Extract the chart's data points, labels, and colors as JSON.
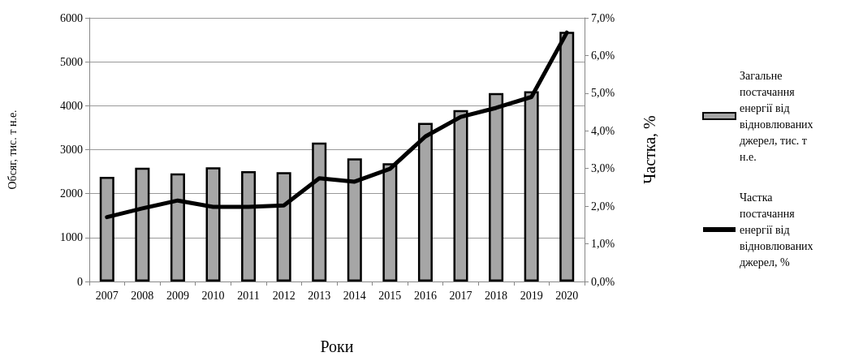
{
  "chart_data": {
    "type": "bar",
    "xlabel": "Роки",
    "ylabel": "Обсяг, тис. т н.е.",
    "y2label": "Частка, %",
    "categories": [
      "2007",
      "2008",
      "2009",
      "2010",
      "2011",
      "2012",
      "2013",
      "2014",
      "2015",
      "2016",
      "2017",
      "2018",
      "2019",
      "2020"
    ],
    "series": [
      {
        "name": "Загальне постачання енергії від відновлюваних джерел, тис. т н.е.",
        "color": "#a6a6a6",
        "values": [
          2380,
          2590,
          2460,
          2600,
          2510,
          2490,
          3160,
          2800,
          2690,
          3610,
          3900,
          4290,
          4330,
          5680
        ]
      },
      {
        "name": "Частка постачання енергії від відновлюваних джерел, %",
        "type": "line",
        "axis": "y2",
        "color": "#000000",
        "values": [
          1.71,
          1.94,
          2.15,
          1.98,
          1.98,
          2.02,
          2.74,
          2.65,
          2.99,
          3.85,
          4.37,
          4.61,
          4.9,
          6.61
        ]
      }
    ],
    "ylim": [
      0,
      6000
    ],
    "yticks": [
      0,
      1000,
      2000,
      3000,
      4000,
      5000,
      6000
    ],
    "y2lim": [
      0,
      7
    ],
    "y2ticks": [
      {
        "value": 0,
        "label": "0,0%"
      },
      {
        "value": 1,
        "label": "1,0%"
      },
      {
        "value": 2,
        "label": "2,0%"
      },
      {
        "value": 3,
        "label": "3,0%"
      },
      {
        "value": 4,
        "label": "4,0%"
      },
      {
        "value": 5,
        "label": "5,0%"
      },
      {
        "value": 6,
        "label": "6,0%"
      },
      {
        "value": 7,
        "label": "7,0%"
      }
    ],
    "grid": "y",
    "legend": "right",
    "marker": "none",
    "line_style": "solid"
  }
}
